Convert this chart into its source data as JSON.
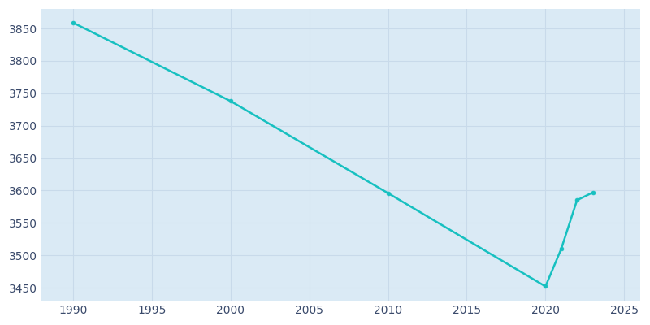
{
  "years": [
    1990,
    2000,
    2010,
    2020,
    2021,
    2022,
    2023
  ],
  "population": [
    3859,
    3738,
    3596,
    3452,
    3510,
    3585,
    3597
  ],
  "line_color": "#17c0c0",
  "marker_color": "#17c0c0",
  "plot_bg_color": "#daeaf5",
  "fig_bg_color": "#ffffff",
  "grid_color": "#c8daea",
  "xlim": [
    1988,
    2026
  ],
  "ylim": [
    3430,
    3880
  ],
  "xticks": [
    1990,
    1995,
    2000,
    2005,
    2010,
    2015,
    2020,
    2025
  ],
  "yticks": [
    3450,
    3500,
    3550,
    3600,
    3650,
    3700,
    3750,
    3800,
    3850
  ],
  "tick_color": "#3a4a6b",
  "tick_fontsize": 10,
  "line_width": 1.8,
  "marker_size": 3.5
}
